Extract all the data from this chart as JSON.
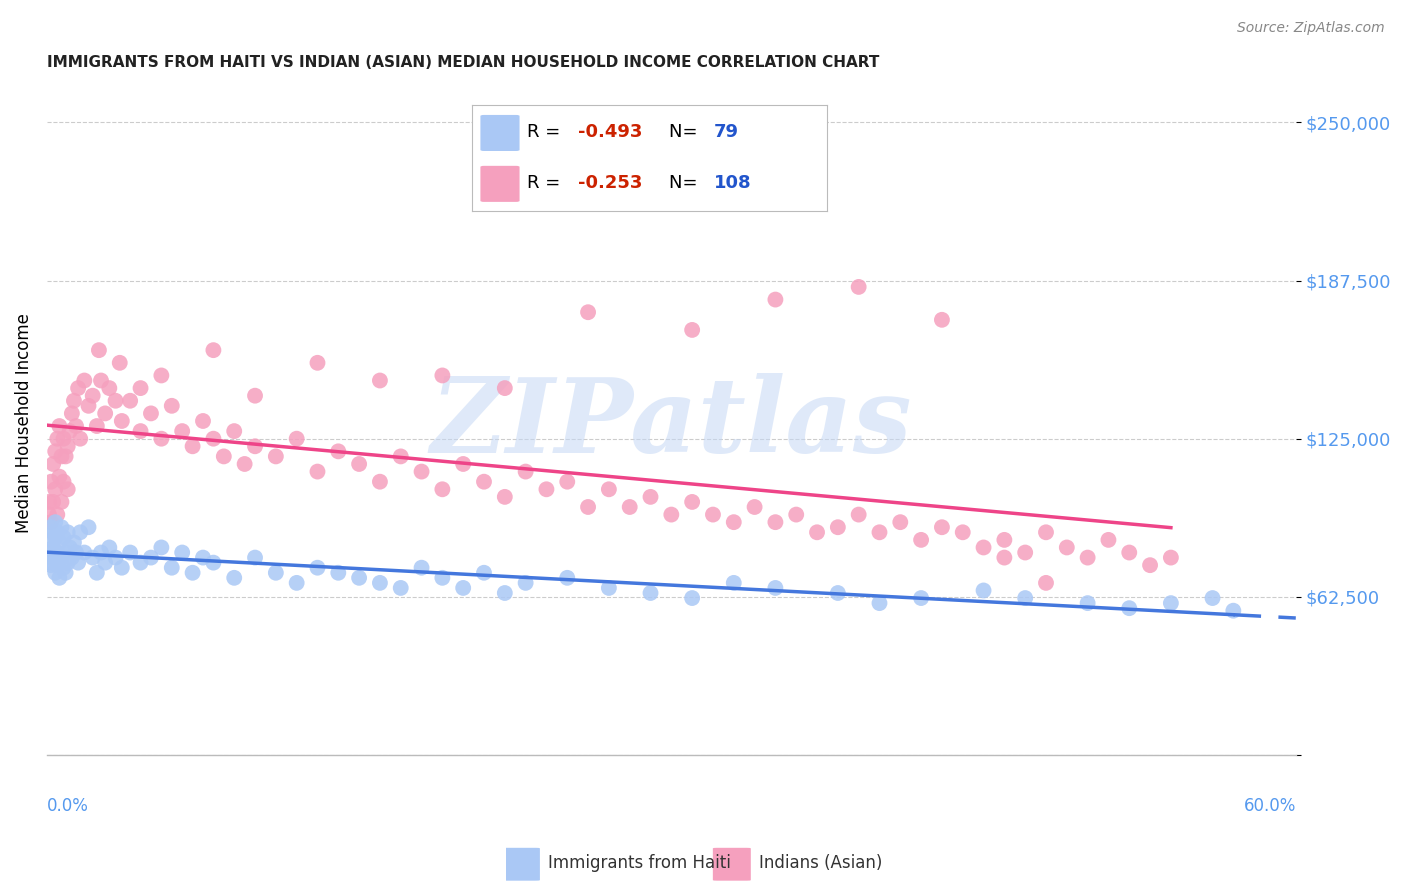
{
  "title": "IMMIGRANTS FROM HAITI VS INDIAN (ASIAN) MEDIAN HOUSEHOLD INCOME CORRELATION CHART",
  "source": "Source: ZipAtlas.com",
  "ylabel": "Median Household Income",
  "xlim": [
    0.0,
    0.6
  ],
  "ylim": [
    0,
    262000
  ],
  "yticks": [
    0,
    62500,
    125000,
    187500,
    250000
  ],
  "ytick_labels": [
    "",
    "$62,500",
    "$125,000",
    "$187,500",
    "$250,000"
  ],
  "xtick_left": "0.0%",
  "xtick_right": "60.0%",
  "legend_haiti_R": "-0.493",
  "legend_haiti_N": "79",
  "legend_indian_R": "-0.253",
  "legend_indian_N": "108",
  "color_haiti_scatter": "#aac8f5",
  "color_indian_scatter": "#f5a0be",
  "color_haiti_line": "#4477dd",
  "color_indian_line": "#ee4488",
  "color_ytick": "#5599ee",
  "color_xtick": "#5599ee",
  "watermark_color": "#c5d8f5",
  "legend_R_color": "#cc2200",
  "legend_N_color": "#2255cc",
  "bottom_legend_label_haiti": "Immigrants from Haiti",
  "bottom_legend_label_indian": "Indians (Asian)",
  "haiti_x": [
    0.001,
    0.001,
    0.002,
    0.002,
    0.002,
    0.003,
    0.003,
    0.003,
    0.004,
    0.004,
    0.004,
    0.005,
    0.005,
    0.005,
    0.006,
    0.006,
    0.007,
    0.007,
    0.008,
    0.008,
    0.009,
    0.009,
    0.01,
    0.01,
    0.011,
    0.012,
    0.013,
    0.014,
    0.015,
    0.016,
    0.018,
    0.02,
    0.022,
    0.024,
    0.026,
    0.028,
    0.03,
    0.033,
    0.036,
    0.04,
    0.045,
    0.05,
    0.055,
    0.06,
    0.065,
    0.07,
    0.075,
    0.08,
    0.09,
    0.1,
    0.11,
    0.12,
    0.13,
    0.14,
    0.15,
    0.16,
    0.17,
    0.18,
    0.19,
    0.2,
    0.21,
    0.22,
    0.23,
    0.25,
    0.27,
    0.29,
    0.31,
    0.33,
    0.35,
    0.38,
    0.4,
    0.42,
    0.45,
    0.47,
    0.5,
    0.52,
    0.54,
    0.56,
    0.57
  ],
  "haiti_y": [
    80000,
    76000,
    85000,
    75000,
    90000,
    88000,
    78000,
    82000,
    86000,
    72000,
    92000,
    80000,
    75000,
    88000,
    84000,
    70000,
    90000,
    78000,
    86000,
    74000,
    80000,
    72000,
    88000,
    76000,
    82000,
    78000,
    84000,
    80000,
    76000,
    88000,
    80000,
    90000,
    78000,
    72000,
    80000,
    76000,
    82000,
    78000,
    74000,
    80000,
    76000,
    78000,
    82000,
    74000,
    80000,
    72000,
    78000,
    76000,
    70000,
    78000,
    72000,
    68000,
    74000,
    72000,
    70000,
    68000,
    66000,
    74000,
    70000,
    66000,
    72000,
    64000,
    68000,
    70000,
    66000,
    64000,
    62000,
    68000,
    66000,
    64000,
    60000,
    62000,
    65000,
    62000,
    60000,
    58000,
    60000,
    62000,
    57000
  ],
  "indian_x": [
    0.001,
    0.001,
    0.002,
    0.002,
    0.003,
    0.003,
    0.004,
    0.004,
    0.005,
    0.005,
    0.006,
    0.006,
    0.007,
    0.007,
    0.008,
    0.008,
    0.009,
    0.01,
    0.01,
    0.011,
    0.012,
    0.013,
    0.014,
    0.015,
    0.016,
    0.018,
    0.02,
    0.022,
    0.024,
    0.026,
    0.028,
    0.03,
    0.033,
    0.036,
    0.04,
    0.045,
    0.05,
    0.055,
    0.06,
    0.065,
    0.07,
    0.075,
    0.08,
    0.085,
    0.09,
    0.095,
    0.1,
    0.11,
    0.12,
    0.13,
    0.14,
    0.15,
    0.16,
    0.17,
    0.18,
    0.19,
    0.2,
    0.21,
    0.22,
    0.23,
    0.24,
    0.25,
    0.26,
    0.27,
    0.28,
    0.29,
    0.3,
    0.31,
    0.32,
    0.33,
    0.34,
    0.35,
    0.36,
    0.37,
    0.38,
    0.39,
    0.4,
    0.41,
    0.42,
    0.43,
    0.44,
    0.45,
    0.46,
    0.47,
    0.48,
    0.49,
    0.5,
    0.51,
    0.52,
    0.53,
    0.54,
    0.025,
    0.035,
    0.045,
    0.055,
    0.08,
    0.1,
    0.13,
    0.16,
    0.19,
    0.22,
    0.26,
    0.31,
    0.35,
    0.39,
    0.43,
    0.46,
    0.48
  ],
  "indian_y": [
    100000,
    95000,
    108000,
    92000,
    115000,
    100000,
    120000,
    105000,
    125000,
    95000,
    130000,
    110000,
    118000,
    100000,
    125000,
    108000,
    118000,
    122000,
    105000,
    128000,
    135000,
    140000,
    130000,
    145000,
    125000,
    148000,
    138000,
    142000,
    130000,
    148000,
    135000,
    145000,
    140000,
    132000,
    140000,
    128000,
    135000,
    125000,
    138000,
    128000,
    122000,
    132000,
    125000,
    118000,
    128000,
    115000,
    122000,
    118000,
    125000,
    112000,
    120000,
    115000,
    108000,
    118000,
    112000,
    105000,
    115000,
    108000,
    102000,
    112000,
    105000,
    108000,
    98000,
    105000,
    98000,
    102000,
    95000,
    100000,
    95000,
    92000,
    98000,
    92000,
    95000,
    88000,
    90000,
    95000,
    88000,
    92000,
    85000,
    90000,
    88000,
    82000,
    85000,
    80000,
    88000,
    82000,
    78000,
    85000,
    80000,
    75000,
    78000,
    160000,
    155000,
    145000,
    150000,
    160000,
    142000,
    155000,
    148000,
    150000,
    145000,
    175000,
    168000,
    180000,
    185000,
    172000,
    78000,
    68000
  ]
}
